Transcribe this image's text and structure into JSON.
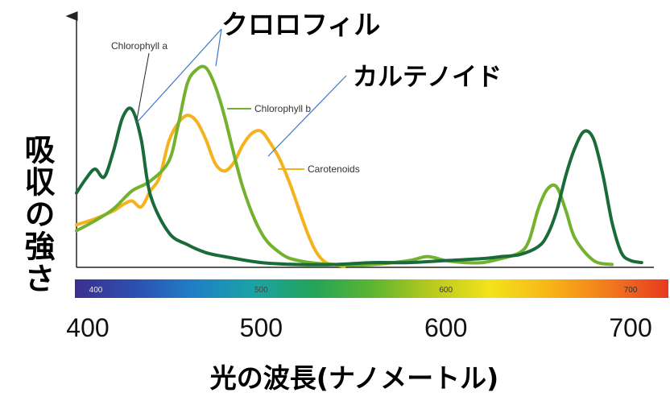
{
  "chart_data": {
    "type": "line",
    "x_range": [
      400,
      710
    ],
    "y_range": [
      0,
      1
    ],
    "grid": false,
    "ylabel": "吸収の強さ",
    "xlabel": "光の波長(ナノメートル)",
    "ticks_big": [
      "400",
      "500",
      "600",
      "700"
    ],
    "ticks_small": [
      "400",
      "500",
      "600",
      "700"
    ],
    "series": [
      {
        "name": "Chlorophyll a",
        "color": "#1a6b3a",
        "x": [
          400,
          405,
          410,
          415,
          420,
          425,
          430,
          435,
          440,
          450,
          460,
          470,
          480,
          500,
          520,
          540,
          560,
          580,
          600,
          620,
          630,
          640,
          650,
          655,
          660,
          665,
          670,
          675,
          680,
          685,
          690,
          695,
          700,
          706
        ],
        "y": [
          0.37,
          0.44,
          0.49,
          0.45,
          0.58,
          0.75,
          0.79,
          0.64,
          0.36,
          0.17,
          0.11,
          0.07,
          0.05,
          0.02,
          0.01,
          0.01,
          0.02,
          0.02,
          0.03,
          0.04,
          0.05,
          0.06,
          0.1,
          0.16,
          0.28,
          0.46,
          0.6,
          0.68,
          0.64,
          0.46,
          0.22,
          0.07,
          0.03,
          0.02
        ]
      },
      {
        "name": "Chlorophyll b",
        "color": "#73b22e",
        "x": [
          400,
          410,
          420,
          430,
          440,
          450,
          455,
          460,
          465,
          470,
          475,
          480,
          490,
          500,
          510,
          520,
          540,
          560,
          580,
          590,
          600,
          610,
          620,
          630,
          640,
          645,
          650,
          655,
          660,
          665,
          670,
          680,
          690
        ],
        "y": [
          0.18,
          0.23,
          0.29,
          0.38,
          0.43,
          0.53,
          0.71,
          0.92,
          0.99,
          1.0,
          0.91,
          0.76,
          0.4,
          0.17,
          0.07,
          0.03,
          0.01,
          0.01,
          0.03,
          0.05,
          0.03,
          0.02,
          0.02,
          0.04,
          0.07,
          0.13,
          0.29,
          0.39,
          0.4,
          0.28,
          0.14,
          0.03,
          0.01
        ]
      },
      {
        "name": "Carotenoids",
        "color": "#f5b21c",
        "x": [
          400,
          410,
          420,
          425,
          430,
          435,
          440,
          445,
          450,
          455,
          460,
          465,
          470,
          475,
          480,
          485,
          490,
          495,
          500,
          505,
          510,
          515,
          520,
          525,
          530,
          535,
          540,
          545
        ],
        "y": [
          0.21,
          0.24,
          0.28,
          0.31,
          0.33,
          0.3,
          0.38,
          0.45,
          0.63,
          0.72,
          0.76,
          0.73,
          0.64,
          0.52,
          0.48,
          0.52,
          0.61,
          0.67,
          0.68,
          0.62,
          0.54,
          0.43,
          0.3,
          0.17,
          0.07,
          0.02,
          0.01,
          0.0
        ]
      }
    ],
    "series_labels": [
      {
        "text": "Chlorophyll a",
        "series": "Chlorophyll a"
      },
      {
        "text": "Chlorophyll b",
        "series": "Chlorophyll b"
      },
      {
        "text": "Carotenoids",
        "series": "Carotenoids"
      }
    ],
    "annotations": [
      {
        "text": "クロロフィル"
      },
      {
        "text": "カルテノイド"
      }
    ]
  },
  "spectrum_bar": {
    "colors": [
      "#3b2f8f",
      "#2d4fb0",
      "#1f7fc6",
      "#1aa3a6",
      "#23a35a",
      "#5bb531",
      "#b9c91d",
      "#f3e31b",
      "#f8b417",
      "#f27a1d",
      "#e8381f"
    ]
  }
}
